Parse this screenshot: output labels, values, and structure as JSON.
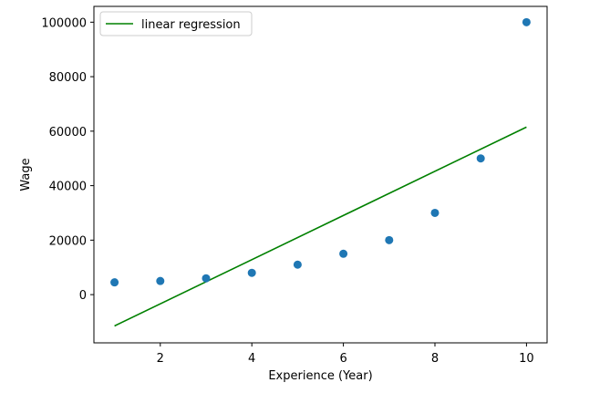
{
  "chart_data": {
    "type": "scatter",
    "xlabel": "Experience (Year)",
    "ylabel": "Wage",
    "xlim": [
      0.55,
      10.45
    ],
    "ylim": [
      -17700,
      105800
    ],
    "x_ticks": [
      2,
      4,
      6,
      8,
      10
    ],
    "y_ticks": [
      0,
      20000,
      40000,
      60000,
      80000,
      100000
    ],
    "grid": false,
    "legend_position": "top-left",
    "series": [
      {
        "kind": "scatter",
        "color": "#1f77b4",
        "x": [
          1,
          2,
          3,
          4,
          5,
          6,
          7,
          8,
          9,
          10
        ],
        "y": [
          4500,
          5000,
          6000,
          8000,
          11000,
          15000,
          20000,
          30000,
          50000,
          100000
        ]
      },
      {
        "kind": "line",
        "name": "linear regression",
        "color": "#008000",
        "x": [
          1,
          10
        ],
        "y": [
          -11500,
          61500
        ]
      }
    ]
  }
}
